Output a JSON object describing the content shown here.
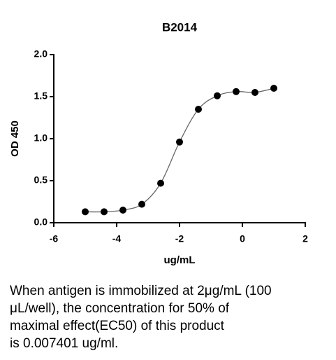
{
  "chart_data": {
    "type": "scatter",
    "title": "B2014",
    "xlabel": "ug/mL",
    "ylabel": "OD 450",
    "x": [
      -5,
      -4.4,
      -3.8,
      -3.2,
      -2.6,
      -2.0,
      -1.4,
      -0.8,
      -0.2,
      0.4,
      1.0
    ],
    "values": [
      0.13,
      0.13,
      0.15,
      0.22,
      0.47,
      0.96,
      1.35,
      1.51,
      1.56,
      1.55,
      1.6
    ],
    "color": "#000000",
    "line_color": "#666666",
    "xlim": [
      -6,
      2
    ],
    "xticks": [
      -6,
      -4,
      -2,
      0,
      2
    ],
    "ylim": [
      0,
      2.0
    ],
    "yticks": [
      {
        "value": 0,
        "label": "0.0"
      },
      0.5,
      {
        "value": 1,
        "label": "1.0"
      },
      1.5,
      {
        "value": 2,
        "label": "2.0"
      }
    ],
    "caption": [
      "When antigen is immobilized at 2μg/mL (100",
      "μL/well), the concentration for 50% of",
      "maximal effect(EC50) of this product",
      "is 0.007401 ug/ml."
    ]
  }
}
